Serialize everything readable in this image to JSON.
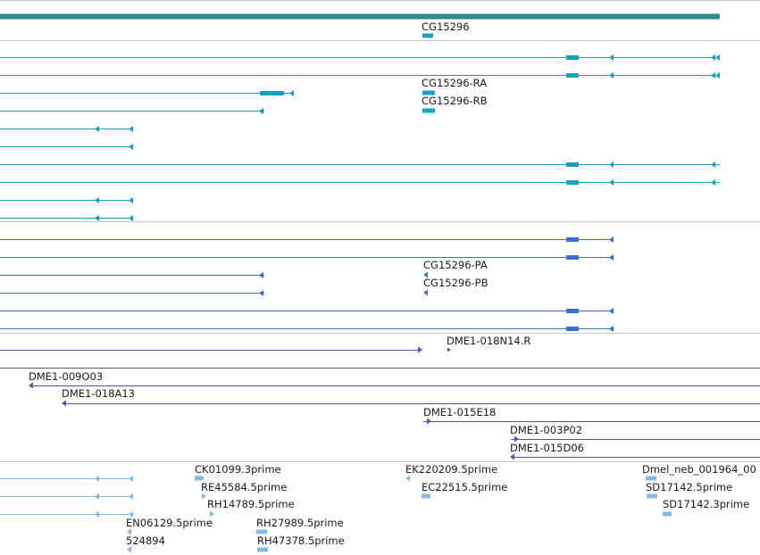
{
  "colors": {
    "gene_bar": "#2e8b8b",
    "gene_feature": "#1aa3bf",
    "transcript": "#17a0bd",
    "protein": "#3a6fd0",
    "clone": "#6a4aa8",
    "est": "#87b8dd",
    "divider": "#c8c8c8",
    "text": "#1a1a1a"
  },
  "gene_track": {
    "labels": [
      "CG15296"
    ]
  },
  "transcript_track": {
    "labels": [
      "CG15296-RA",
      "CG15296-RB"
    ]
  },
  "protein_track": {
    "labels": [
      "CG15296-PA",
      "CG15296-PB"
    ]
  },
  "clone_track": {
    "labels": [
      "DME1-018N14.R",
      "DME1-009O03",
      "DME1-018A13",
      "DME1-015E18",
      "DME1-003P02",
      "DME1-015D06"
    ]
  },
  "est_track": {
    "labels": [
      "CK01099.3prime",
      "EK220209.5prime",
      "Dmel_neb_001964_00",
      "RE45584.5prime",
      "EC22515.5prime",
      "SD17142.5prime",
      "RH14789.5prime",
      "SD17142.3prime",
      "EN06129.5prime",
      "RH27989.5prime",
      "524894",
      "RH47378.5prime"
    ]
  }
}
